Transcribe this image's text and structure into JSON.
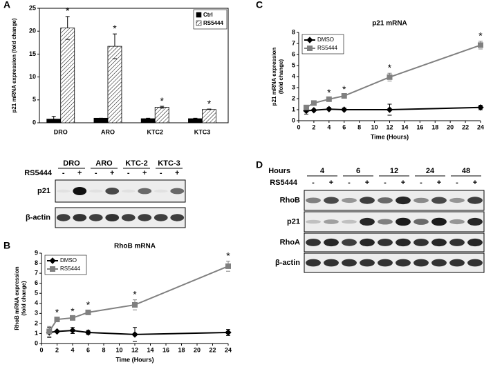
{
  "chart_data": [
    {
      "panel": "A",
      "type": "bar",
      "ylabel": [
        "p21 mRNA expression (fold change)"
      ],
      "categories": [
        "DRO",
        "ARO",
        "KTC2",
        "KTC3"
      ],
      "series": [
        {
          "name": "Ctrl",
          "color": "#000000",
          "values": [
            0.8,
            1,
            0.9,
            0.9
          ],
          "errors": [
            0.6,
            0,
            0.1,
            0.1
          ],
          "annotations": [
            null,
            null,
            null,
            null
          ]
        },
        {
          "name": "RS5444",
          "color": "#ffffff",
          "pattern": "hatch",
          "values": [
            20.7,
            16.7,
            3.4,
            2.9
          ],
          "errors": [
            2.5,
            2.7,
            0.2,
            0.1
          ],
          "annotations": [
            "*",
            "*",
            "*",
            "*"
          ]
        }
      ],
      "ylim": [
        0,
        25
      ],
      "yticks": [
        0,
        5,
        10,
        15,
        20,
        25
      ],
      "legend": "upper right",
      "frame": true
    },
    {
      "panel": "B",
      "type": "line",
      "title": "RhoB mRNA",
      "xlabel": "Time (Hours)",
      "ylabel": [
        "RhoB mRNA expression",
        "(fold change)"
      ],
      "x": [
        1,
        2,
        4,
        6,
        12,
        24
      ],
      "series": [
        {
          "name": "DMSO",
          "color": "#000000",
          "marker": "diamond",
          "values": [
            1.1,
            1.2,
            1.3,
            1.1,
            0.9,
            1.1
          ],
          "errors": [
            0.5,
            0.1,
            0.3,
            0.2,
            0.7,
            0.3
          ],
          "annotations": [
            null,
            null,
            null,
            null,
            null,
            null
          ]
        },
        {
          "name": "RS5444",
          "color": "#808080",
          "marker": "square",
          "values": [
            1.2,
            2.4,
            2.55,
            3.1,
            3.85,
            7.7
          ],
          "errors": [
            0.5,
            0.15,
            0.1,
            0.2,
            0.5,
            0.5
          ],
          "annotations": [
            null,
            "*",
            "*",
            "*",
            "*",
            "*"
          ]
        }
      ],
      "xlim": [
        0,
        24
      ],
      "xticks": [
        0,
        2,
        4,
        6,
        8,
        10,
        12,
        14,
        16,
        18,
        20,
        22,
        24
      ],
      "ylim": [
        0,
        9
      ],
      "yticks": [
        0,
        1,
        2,
        3,
        4,
        5,
        6,
        7,
        8,
        9
      ],
      "legend": "upper left",
      "frame": false
    },
    {
      "panel": "C",
      "type": "line",
      "title": "p21 mRNA",
      "xlabel": "Time (Hours)",
      "ylabel": [
        "p21 mRNA expression",
        "(fold change)"
      ],
      "x": [
        1,
        2,
        4,
        6,
        12,
        24
      ],
      "series": [
        {
          "name": "DMSO",
          "color": "#000000",
          "marker": "diamond",
          "values": [
            0.9,
            0.95,
            1.05,
            1.0,
            1.0,
            1.2
          ],
          "errors": [
            0.3,
            0.1,
            0.15,
            0.15,
            0.5,
            0.2
          ],
          "annotations": [
            null,
            null,
            null,
            null,
            null,
            null
          ]
        },
        {
          "name": "RS5444",
          "color": "#808080",
          "marker": "square",
          "values": [
            1.2,
            1.6,
            1.95,
            2.25,
            3.95,
            6.85
          ],
          "errors": [
            0.2,
            0.1,
            0.1,
            0.1,
            0.35,
            0.35
          ],
          "annotations": [
            null,
            null,
            "*",
            "*",
            "*",
            "*"
          ]
        }
      ],
      "xlim": [
        0,
        24
      ],
      "xticks": [
        0,
        2,
        4,
        6,
        8,
        10,
        12,
        14,
        16,
        18,
        20,
        22,
        24
      ],
      "ylim": [
        0,
        8
      ],
      "yticks": [
        0,
        1,
        2,
        3,
        4,
        5,
        6,
        7,
        8
      ],
      "legend": "upper left",
      "frame": false
    }
  ],
  "blots": [
    {
      "header": null,
      "groups": [
        "DRO",
        "ARO",
        "KTC-2",
        "KTC-3"
      ],
      "treatment": "RS5444",
      "lanes": [
        "-",
        "+",
        "-",
        "+",
        "-",
        "+",
        "-",
        "+"
      ],
      "rows": [
        "p21",
        "β-actin"
      ]
    },
    {
      "panel": "D",
      "header": "Hours",
      "groups": [
        "4",
        "6",
        "12",
        "24",
        "48"
      ],
      "treatment": "RS5444",
      "lanes": [
        "-",
        "+",
        "-",
        "+",
        "-",
        "+",
        "-",
        "+",
        "-",
        "+"
      ],
      "rows": [
        "RhoB",
        "p21",
        "RhoA",
        "β-actin"
      ]
    }
  ]
}
